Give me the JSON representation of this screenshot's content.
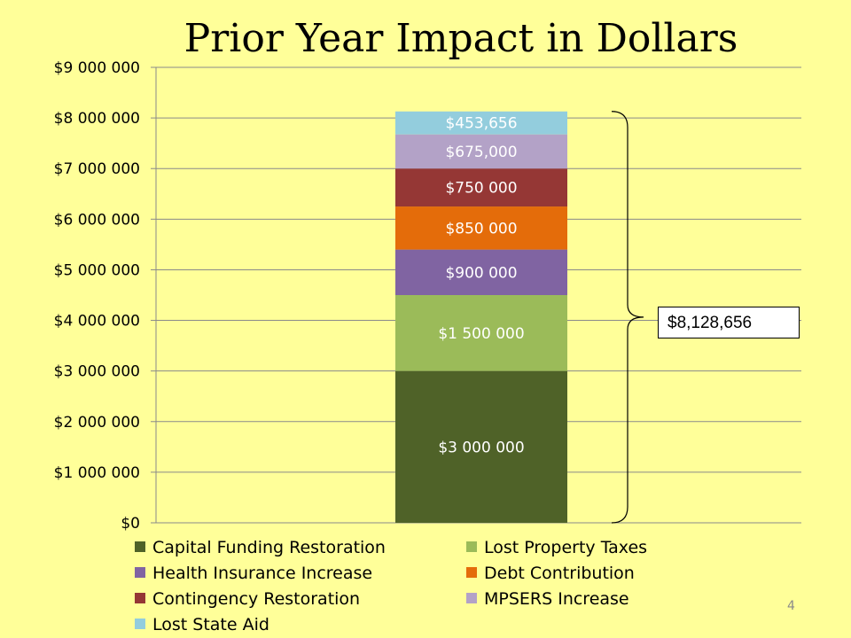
{
  "slide": {
    "title": "Prior Year Impact in Dollars",
    "page_number": "4",
    "total_label": "$8,128,656"
  },
  "chart_data": {
    "type": "bar",
    "stacked": true,
    "title": "Prior Year Impact in Dollars",
    "categories": [
      ""
    ],
    "ylim": [
      0,
      9000000
    ],
    "y_ticks": [
      0,
      1000000,
      2000000,
      3000000,
      4000000,
      5000000,
      6000000,
      7000000,
      8000000,
      9000000
    ],
    "y_tick_labels": [
      "$0",
      "$1 000 000",
      "$2 000 000",
      "$3 000 000",
      "$4 000 000",
      "$5 000 000",
      "$6 000 000",
      "$7 000 000",
      "$8 000 000",
      "$9 000 000"
    ],
    "grid": true,
    "legend_position": "bottom",
    "series": [
      {
        "name": "Capital Funding Restoration",
        "values": [
          3000000
        ],
        "label": "$3 000 000",
        "color": "#4F6228"
      },
      {
        "name": "Lost Property Taxes",
        "values": [
          1500000
        ],
        "label": "$1 500 000",
        "color": "#9BBB59"
      },
      {
        "name": "Health Insurance Increase",
        "values": [
          900000
        ],
        "label": "$900 000",
        "color": "#8064A2"
      },
      {
        "name": "Debt Contribution",
        "values": [
          850000
        ],
        "label": "$850 000",
        "color": "#E46C0A"
      },
      {
        "name": "Contingency Restoration",
        "values": [
          750000
        ],
        "label": "$750 000",
        "color": "#953735"
      },
      {
        "name": "MPSERS Increase",
        "values": [
          675000
        ],
        "label": "$675,000",
        "color": "#B3A2C7"
      },
      {
        "name": "Lost State Aid",
        "values": [
          453656
        ],
        "label": "$453,656",
        "color": "#93CDDD"
      }
    ]
  }
}
